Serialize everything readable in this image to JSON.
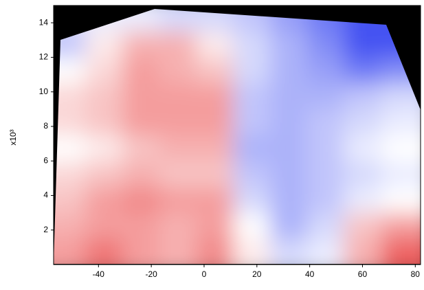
{
  "chart_data": {
    "type": "contour",
    "ylabel": "x10³",
    "xlim": [
      -57,
      82
    ],
    "ylim": [
      0,
      15
    ],
    "xticks": [
      -40,
      -20,
      0,
      20,
      40,
      60,
      80
    ],
    "yticks": [
      2,
      4,
      6,
      8,
      10,
      12,
      14
    ],
    "colors": {
      "low": "#2f3ff0",
      "mid": "#ffffff",
      "high": "#e83a3a"
    },
    "x": [
      -52,
      -38,
      -24,
      -10,
      4,
      18,
      32,
      46,
      60,
      74
    ],
    "y": [
      0.75,
      2.25,
      3.75,
      5.25,
      6.75,
      8.25,
      9.75,
      11.25,
      12.75,
      14.25
    ],
    "z": [
      [
        0.5,
        0.7,
        0.5,
        0.4,
        0.6,
        0.1,
        -0.2,
        -0.1,
        0.4,
        0.8
      ],
      [
        0.4,
        0.5,
        0.5,
        0.4,
        0.5,
        0.0,
        -0.4,
        -0.2,
        0.3,
        0.5
      ],
      [
        0.3,
        0.5,
        0.6,
        0.5,
        0.5,
        -0.2,
        -0.4,
        -0.3,
        -0.1,
        0.0
      ],
      [
        0.2,
        0.3,
        0.4,
        0.3,
        0.3,
        -0.3,
        -0.4,
        -0.3,
        -0.2,
        -0.1
      ],
      [
        0.0,
        0.1,
        0.3,
        0.4,
        0.4,
        -0.4,
        -0.4,
        -0.3,
        -0.1,
        0.0
      ],
      [
        0.2,
        0.3,
        0.5,
        0.5,
        0.5,
        -0.3,
        -0.4,
        -0.3,
        -0.2,
        -0.1
      ],
      [
        0.2,
        0.3,
        0.5,
        0.5,
        0.5,
        -0.3,
        -0.4,
        -0.4,
        -0.3,
        -0.2
      ],
      [
        0.0,
        0.2,
        0.5,
        0.4,
        0.3,
        -0.2,
        -0.4,
        -0.5,
        -0.7,
        -0.6
      ],
      [
        -0.3,
        0.1,
        0.4,
        0.4,
        0.1,
        -0.2,
        -0.4,
        -0.6,
        -0.9,
        -0.9
      ],
      [
        -0.2,
        -0.1,
        -0.1,
        -0.2,
        -0.2,
        -0.3,
        -0.5,
        -0.7,
        -0.9,
        -0.9
      ]
    ]
  }
}
